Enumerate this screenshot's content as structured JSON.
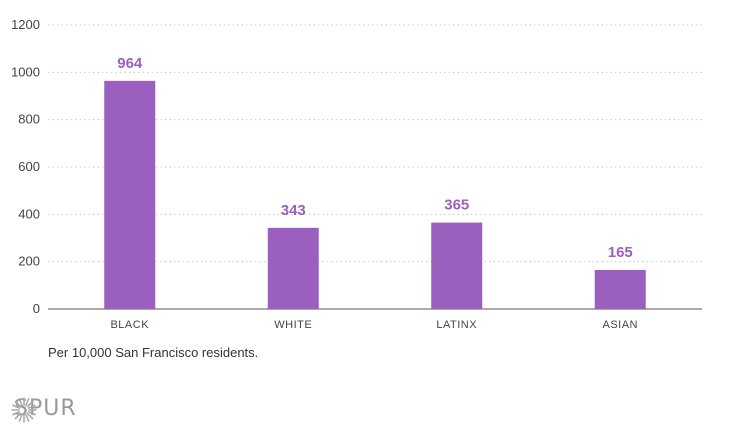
{
  "chart_data": {
    "type": "bar",
    "categories": [
      "BLACK",
      "WHITE",
      "LATINX",
      "ASIAN"
    ],
    "values": [
      964,
      343,
      365,
      165
    ],
    "data_labels": [
      "964",
      "343",
      "365",
      "165"
    ],
    "title": "",
    "xlabel": "",
    "ylabel": "",
    "ylim": [
      0,
      1200
    ],
    "yticks": [
      "0",
      "200",
      "400",
      "600",
      "800",
      "1000",
      "1200"
    ],
    "grid": true,
    "bar_color": "#9b5fbf",
    "label_color": "#9b5fbf"
  },
  "footnote": "Per 10,000 San Francisco residents.",
  "brand": {
    "name": "SPUR",
    "icon": "sunburst-icon"
  }
}
